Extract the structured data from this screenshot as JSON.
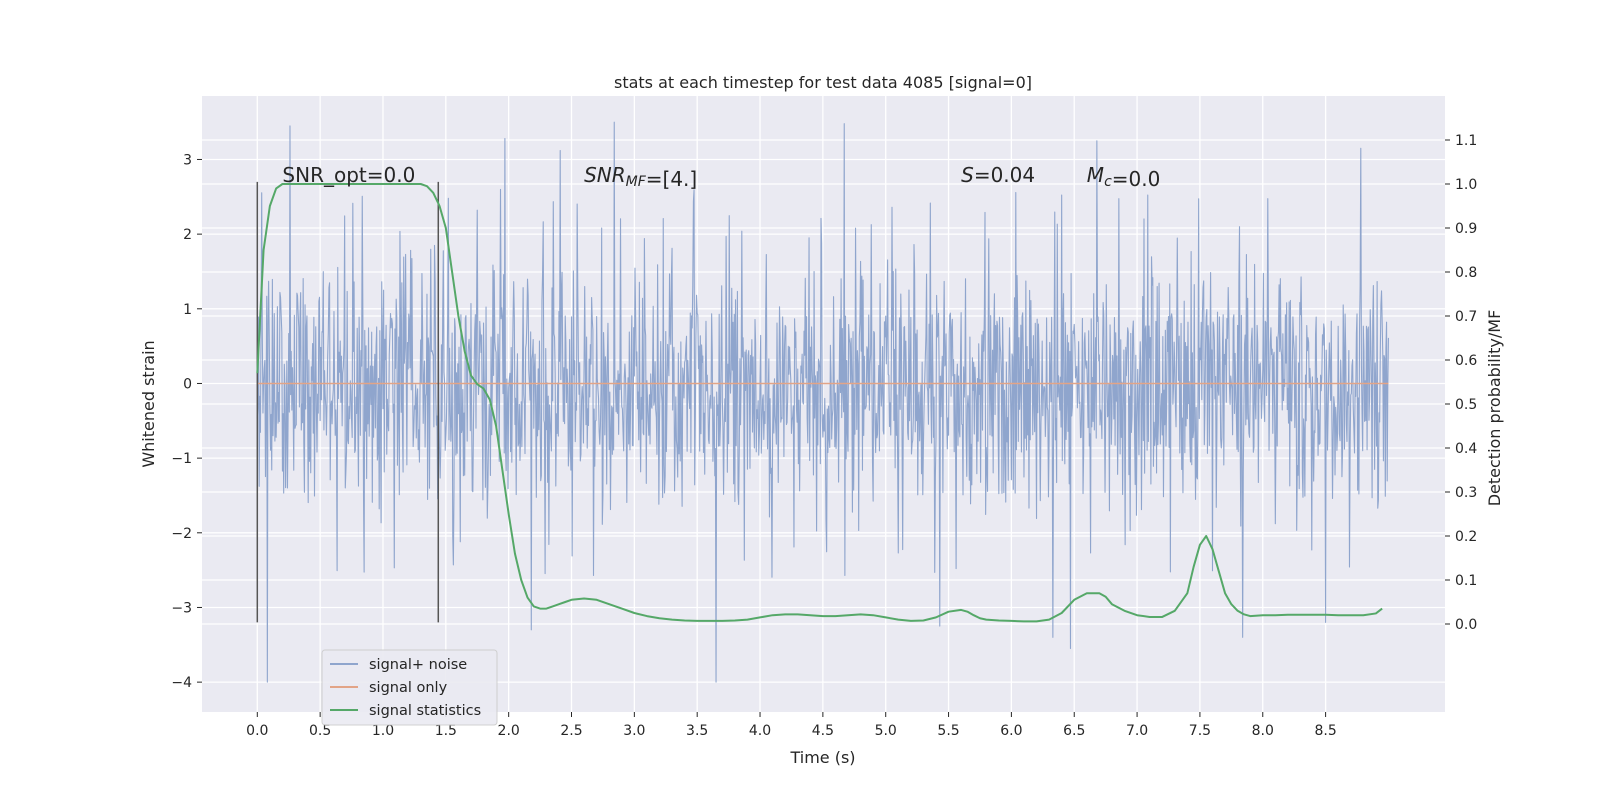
{
  "chart_data": {
    "type": "line",
    "title": "stats at each timestep for test data 4085 [signal=0]",
    "xlabel": "Time (s)",
    "ylabel": "Whitened strain",
    "y2label": "Detection probability/MF",
    "xlim": [
      -0.44,
      9.45
    ],
    "ylim": [
      -4.4,
      3.85
    ],
    "y2lim": [
      -0.2,
      1.2
    ],
    "xticks": [
      "0.0",
      "0.5",
      "1.0",
      "1.5",
      "2.0",
      "2.5",
      "3.0",
      "3.5",
      "4.0",
      "4.5",
      "5.0",
      "5.5",
      "6.0",
      "6.5",
      "7.0",
      "7.5",
      "8.0",
      "8.5"
    ],
    "yticks": [
      "3",
      "2",
      "1",
      "0",
      "−1",
      "−2",
      "−3",
      "−4"
    ],
    "y2ticks": [
      "1.1",
      "1.0",
      "0.9",
      "0.8",
      "0.7",
      "0.6",
      "0.5",
      "0.4",
      "0.3",
      "0.2",
      "0.1",
      "0.0"
    ],
    "grid": true,
    "legend_position": "lower-left",
    "annotations": [
      {
        "parts": [
          {
            "t": "SNR_opt=0.0",
            "style": "normal"
          }
        ],
        "x": 0.2,
        "y": 2.7
      },
      {
        "parts": [
          {
            "t": "SNR",
            "style": "italic"
          },
          {
            "t": "MF",
            "style": "italic-sub"
          },
          {
            "t": "=[4.]",
            "style": "normal"
          }
        ],
        "x": 2.6,
        "y": 2.7
      },
      {
        "parts": [
          {
            "t": "S",
            "style": "italic"
          },
          {
            "t": "=0.04",
            "style": "normal"
          }
        ],
        "x": 5.6,
        "y": 2.7
      },
      {
        "parts": [
          {
            "t": "M",
            "style": "italic"
          },
          {
            "t": "c",
            "style": "italic-sub"
          },
          {
            "t": "=0.0",
            "style": "normal"
          }
        ],
        "x": 6.6,
        "y": 2.7
      }
    ],
    "vertical_markers": [
      {
        "x": 0.0,
        "y_from": -3.2,
        "y_to": 2.7
      },
      {
        "x": 1.44,
        "y_from": -3.2,
        "y_to": 2.7
      }
    ],
    "series": [
      {
        "name": "signal+ noise",
        "color": "#8fa5cd",
        "x_range": [
          0,
          9.0
        ],
        "envelope": {
          "core_lo": -0.9,
          "core_hi": 0.95,
          "typical_lo": -1.6,
          "typical_hi": 1.5,
          "min": -4.0,
          "max": 3.5
        },
        "peaks": [
          [
            0.26,
            3.45
          ],
          [
            1.97,
            3.28
          ],
          [
            2.41,
            3.12
          ],
          [
            2.84,
            3.5
          ],
          [
            4.67,
            3.48
          ],
          [
            6.68,
            3.25
          ],
          [
            8.78,
            3.15
          ],
          [
            0.08,
            -4.0
          ],
          [
            3.65,
            -4.0
          ],
          [
            2.18,
            -3.3
          ],
          [
            5.43,
            -3.25
          ],
          [
            6.33,
            -3.4
          ],
          [
            6.47,
            -3.55
          ],
          [
            7.84,
            -3.4
          ],
          [
            8.5,
            -3.2
          ]
        ]
      },
      {
        "name": "signal only",
        "color": "#e2a487",
        "x": [
          0.0,
          9.0
        ],
        "y": [
          0.0,
          0.0
        ]
      },
      {
        "name": "signal statistics",
        "color": "#55a868",
        "axis": "right",
        "x": [
          0.0,
          0.05,
          0.1,
          0.15,
          0.2,
          0.3,
          0.5,
          0.8,
          1.0,
          1.2,
          1.3,
          1.35,
          1.4,
          1.45,
          1.5,
          1.55,
          1.6,
          1.65,
          1.7,
          1.75,
          1.8,
          1.85,
          1.9,
          1.95,
          2.0,
          2.05,
          2.1,
          2.15,
          2.2,
          2.25,
          2.3,
          2.35,
          2.4,
          2.45,
          2.5,
          2.6,
          2.7,
          2.8,
          2.9,
          3.0,
          3.1,
          3.2,
          3.3,
          3.4,
          3.5,
          3.6,
          3.7,
          3.8,
          3.9,
          4.0,
          4.1,
          4.2,
          4.3,
          4.4,
          4.5,
          4.6,
          4.7,
          4.8,
          4.9,
          5.0,
          5.1,
          5.2,
          5.3,
          5.4,
          5.5,
          5.6,
          5.65,
          5.7,
          5.75,
          5.8,
          5.9,
          6.0,
          6.1,
          6.2,
          6.3,
          6.4,
          6.5,
          6.6,
          6.7,
          6.75,
          6.8,
          6.9,
          7.0,
          7.1,
          7.2,
          7.3,
          7.4,
          7.45,
          7.5,
          7.55,
          7.6,
          7.65,
          7.7,
          7.75,
          7.8,
          7.85,
          7.9,
          8.0,
          8.1,
          8.2,
          8.3,
          8.4,
          8.5,
          8.6,
          8.7,
          8.8,
          8.9,
          8.95
        ],
        "y": [
          0.57,
          0.85,
          0.95,
          0.99,
          1.0,
          1.0,
          1.0,
          1.0,
          1.0,
          1.0,
          1.0,
          0.995,
          0.98,
          0.95,
          0.9,
          0.8,
          0.7,
          0.62,
          0.565,
          0.545,
          0.535,
          0.51,
          0.45,
          0.35,
          0.25,
          0.16,
          0.1,
          0.06,
          0.04,
          0.035,
          0.035,
          0.04,
          0.045,
          0.05,
          0.055,
          0.058,
          0.055,
          0.045,
          0.035,
          0.025,
          0.018,
          0.013,
          0.01,
          0.008,
          0.007,
          0.007,
          0.007,
          0.008,
          0.01,
          0.015,
          0.02,
          0.022,
          0.022,
          0.02,
          0.018,
          0.018,
          0.02,
          0.022,
          0.02,
          0.015,
          0.01,
          0.007,
          0.008,
          0.015,
          0.028,
          0.032,
          0.028,
          0.02,
          0.013,
          0.01,
          0.008,
          0.007,
          0.006,
          0.006,
          0.01,
          0.025,
          0.055,
          0.07,
          0.07,
          0.062,
          0.045,
          0.03,
          0.02,
          0.016,
          0.016,
          0.03,
          0.07,
          0.13,
          0.18,
          0.2,
          0.17,
          0.12,
          0.07,
          0.045,
          0.03,
          0.022,
          0.018,
          0.02,
          0.02,
          0.021,
          0.021,
          0.021,
          0.021,
          0.02,
          0.02,
          0.02,
          0.024,
          0.035
        ]
      }
    ]
  }
}
